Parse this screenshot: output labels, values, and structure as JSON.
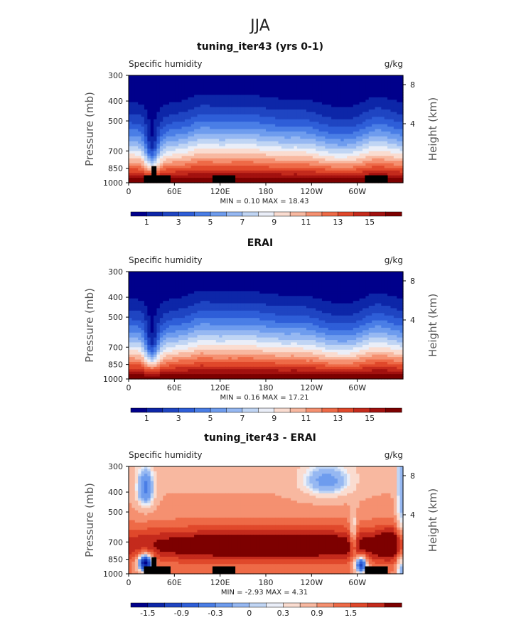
{
  "figure": {
    "title": "JJA",
    "left_axis_label": "Pressure (mb)",
    "right_axis_label": "Height (km)",
    "variable_label": "Specific humidity",
    "units_label": "g/kg",
    "x_tick_labels": [
      "0",
      "60E",
      "120E",
      "180",
      "120W",
      "60W"
    ],
    "y_tick_labels": [
      "300",
      "400",
      "500",
      "700",
      "850",
      "1000"
    ],
    "height_tick_labels": [
      "8",
      "4"
    ]
  },
  "chart_data": [
    {
      "type": "heatmap",
      "title": "tuning_iter43 (yrs 0-1)",
      "xlabel": "",
      "ylabel": "Pressure (mb)",
      "y2label": "Height (km)",
      "x_ticks": [
        "0",
        "60E",
        "120E",
        "180",
        "120W",
        "60W"
      ],
      "x_tick_values": [
        0,
        60,
        120,
        180,
        240,
        300
      ],
      "xlim": [
        0,
        360
      ],
      "y_ticks": [
        300,
        400,
        500,
        700,
        850,
        1000
      ],
      "ylim": [
        1000,
        300
      ],
      "y2_ticks": [
        8,
        4
      ],
      "stats_text": "MIN =    0.10   MAX =   18.43",
      "min": 0.1,
      "max": 18.43,
      "colorbar_labels": [
        "1",
        "3",
        "5",
        "7",
        "9",
        "11",
        "13",
        "15"
      ],
      "levels": [
        1,
        2,
        3,
        4,
        5,
        6,
        7,
        8,
        9,
        10,
        11,
        12,
        13,
        14,
        15,
        16
      ],
      "colors": [
        "#00008b",
        "#0d26a8",
        "#1f45c2",
        "#2e5ed8",
        "#4a7ee6",
        "#6e9cee",
        "#96b8f2",
        "#c0d5f4",
        "#eaeef8",
        "#fadcd0",
        "#f8b8a0",
        "#f59070",
        "#ee6a47",
        "#e0482b",
        "#c42a1c",
        "#a2110f",
        "#7d0000"
      ],
      "land_blocks_lon": [
        [
          20,
          55
        ],
        [
          110,
          140
        ],
        [
          310,
          340
        ]
      ]
    },
    {
      "type": "heatmap",
      "title": "ERAI",
      "xlabel": "",
      "ylabel": "Pressure (mb)",
      "y2label": "Height (km)",
      "x_ticks": [
        "0",
        "60E",
        "120E",
        "180",
        "120W",
        "60W"
      ],
      "x_tick_values": [
        0,
        60,
        120,
        180,
        240,
        300
      ],
      "xlim": [
        0,
        360
      ],
      "y_ticks": [
        300,
        400,
        500,
        700,
        850,
        1000
      ],
      "ylim": [
        1000,
        300
      ],
      "y2_ticks": [
        8,
        4
      ],
      "stats_text": "MIN =    0.16   MAX =   17.21",
      "min": 0.16,
      "max": 17.21,
      "colorbar_labels": [
        "1",
        "3",
        "5",
        "7",
        "9",
        "11",
        "13",
        "15"
      ],
      "levels": [
        1,
        2,
        3,
        4,
        5,
        6,
        7,
        8,
        9,
        10,
        11,
        12,
        13,
        14,
        15,
        16
      ],
      "colors": [
        "#00008b",
        "#0d26a8",
        "#1f45c2",
        "#2e5ed8",
        "#4a7ee6",
        "#6e9cee",
        "#96b8f2",
        "#c0d5f4",
        "#eaeef8",
        "#fadcd0",
        "#f8b8a0",
        "#f59070",
        "#ee6a47",
        "#e0482b",
        "#c42a1c",
        "#a2110f",
        "#7d0000"
      ],
      "land_blocks_lon": []
    },
    {
      "type": "heatmap",
      "title": "tuning_iter43 - ERAI",
      "xlabel": "",
      "ylabel": "Pressure (mb)",
      "y2label": "Height (km)",
      "x_ticks": [
        "0",
        "60E",
        "120E",
        "180",
        "120W",
        "60W"
      ],
      "x_tick_values": [
        0,
        60,
        120,
        180,
        240,
        300
      ],
      "xlim": [
        0,
        360
      ],
      "y_ticks": [
        300,
        400,
        500,
        700,
        850,
        1000
      ],
      "ylim": [
        1000,
        300
      ],
      "y2_ticks": [
        8,
        4
      ],
      "stats_text": "MIN =   -2.93   MAX =    4.31",
      "min": -2.93,
      "max": 4.31,
      "colorbar_labels": [
        "-1.5",
        "-0.9",
        "-0.3",
        "0",
        "0.3",
        "0.9",
        "1.5"
      ],
      "levels": [
        -1.8,
        -1.5,
        -1.2,
        -0.9,
        -0.6,
        -0.3,
        -0.1,
        0,
        0.1,
        0.3,
        0.6,
        0.9,
        1.2,
        1.5,
        1.8
      ],
      "colors": [
        "#00008b",
        "#0d26a8",
        "#1f45c2",
        "#2e5ed8",
        "#4a7ee6",
        "#6e9cee",
        "#96b8f2",
        "#c0d5f4",
        "#eaeef8",
        "#fadcd0",
        "#f8b8a0",
        "#f59070",
        "#ee6a47",
        "#e0482b",
        "#c42a1c",
        "#7d0000"
      ],
      "land_blocks_lon": [
        [
          20,
          55
        ],
        [
          110,
          140
        ],
        [
          310,
          340
        ]
      ]
    }
  ]
}
